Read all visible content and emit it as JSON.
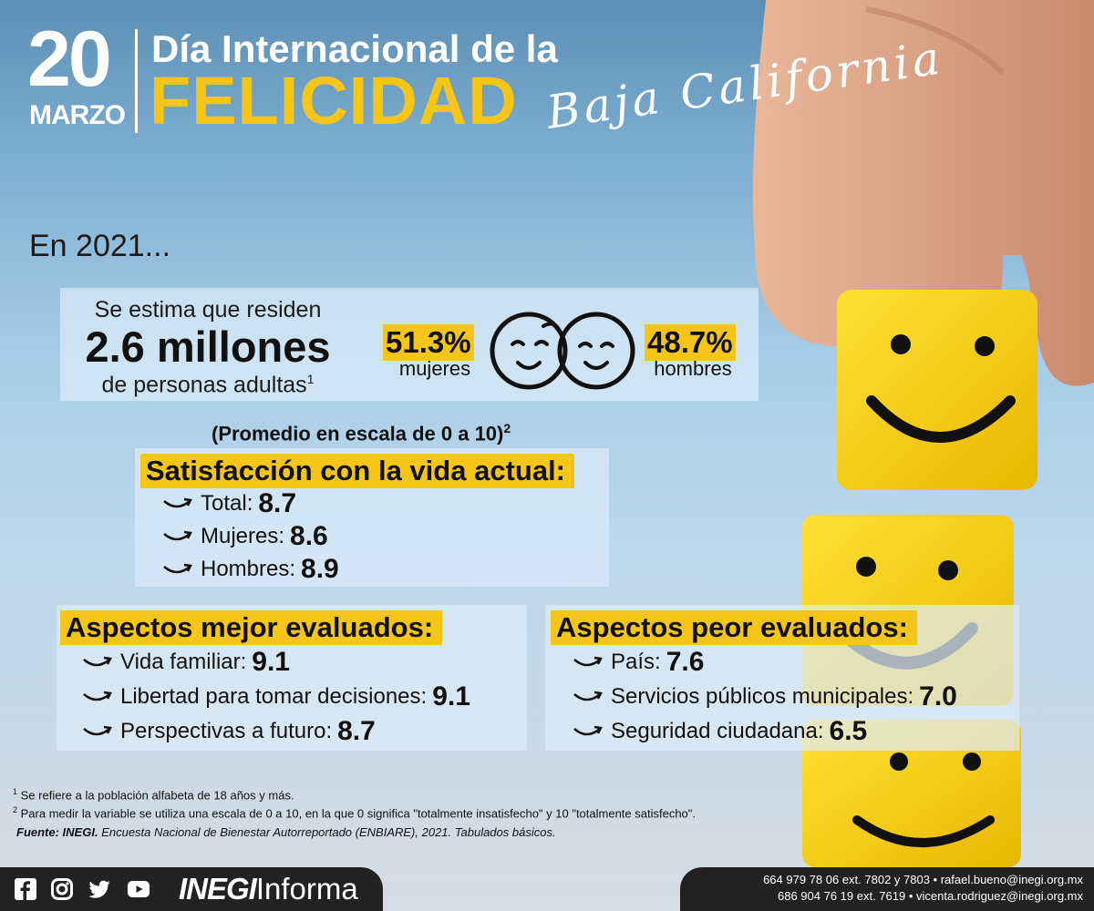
{
  "header": {
    "day": "20",
    "month": "MARZO",
    "title_line1": "Día Internacional de la",
    "title_line2": "FELICIDAD",
    "region": "Baja California"
  },
  "intro": {
    "year_text": "En 2021..."
  },
  "population": {
    "line1": "Se estima que residen",
    "line2": "2.6 millones",
    "line3": "de personas adultas",
    "line3_footnote": "1",
    "women_pct": "51.3%",
    "women_label": "mujeres",
    "men_pct": "48.7%",
    "men_label": "hombres",
    "icon": "smiling-faces-icon"
  },
  "scale_note": {
    "text": "(Promedio en escala de 0 a 10)",
    "footnote": "2"
  },
  "life_satisfaction": {
    "title": "Satisfacción con la vida actual:",
    "items": [
      {
        "label": "Total:",
        "value": "8.7"
      },
      {
        "label": "Mujeres:",
        "value": "8.6"
      },
      {
        "label": "Hombres:",
        "value": "8.9"
      }
    ]
  },
  "best_aspects": {
    "title": "Aspectos mejor evaluados:",
    "items": [
      {
        "label": "Vida familiar:",
        "value": "9.1"
      },
      {
        "label": "Libertad para tomar decisiones:",
        "value": "9.1"
      },
      {
        "label": "Perspectivas a futuro:",
        "value": "8.7"
      }
    ]
  },
  "worst_aspects": {
    "title": "Aspectos peor evaluados:",
    "items": [
      {
        "label": "País:",
        "value": "7.6"
      },
      {
        "label": "Servicios públicos municipales:",
        "value": "7.0"
      },
      {
        "label": "Seguridad ciudadana:",
        "value": "6.5"
      }
    ]
  },
  "footnotes": {
    "fn1_mark": "1",
    "fn1": "Se refiere a la población alfabeta de 18 años y más.",
    "fn2_mark": "2",
    "fn2": "Para medir la variable se utiliza una escala de 0 a 10, en la que 0 significa \"totalmente insatisfecho\" y 10 \"totalmente satisfecho\".",
    "source_label": "Fuente: INEGI.",
    "source_text": "Encuesta Nacional de Bienestar Autorreportado (ENBIARE), 2021. Tabulados básicos."
  },
  "footer": {
    "social_icons": [
      "facebook-icon",
      "instagram-icon",
      "twitter-icon",
      "youtube-icon"
    ],
    "brand_bold": "INEGI",
    "brand_light": "Informa",
    "contact1": "664 979 78 06 ext. 7802 y 7803 • rafael.bueno@inegi.org.mx",
    "contact2": "686 904 76 19 ext. 7619 • vicenta.rodriguez@inegi.org.mx"
  },
  "colors": {
    "accent_yellow": "#f5c518",
    "footer_dark": "#222222",
    "panel_light": "#dcecf8"
  }
}
